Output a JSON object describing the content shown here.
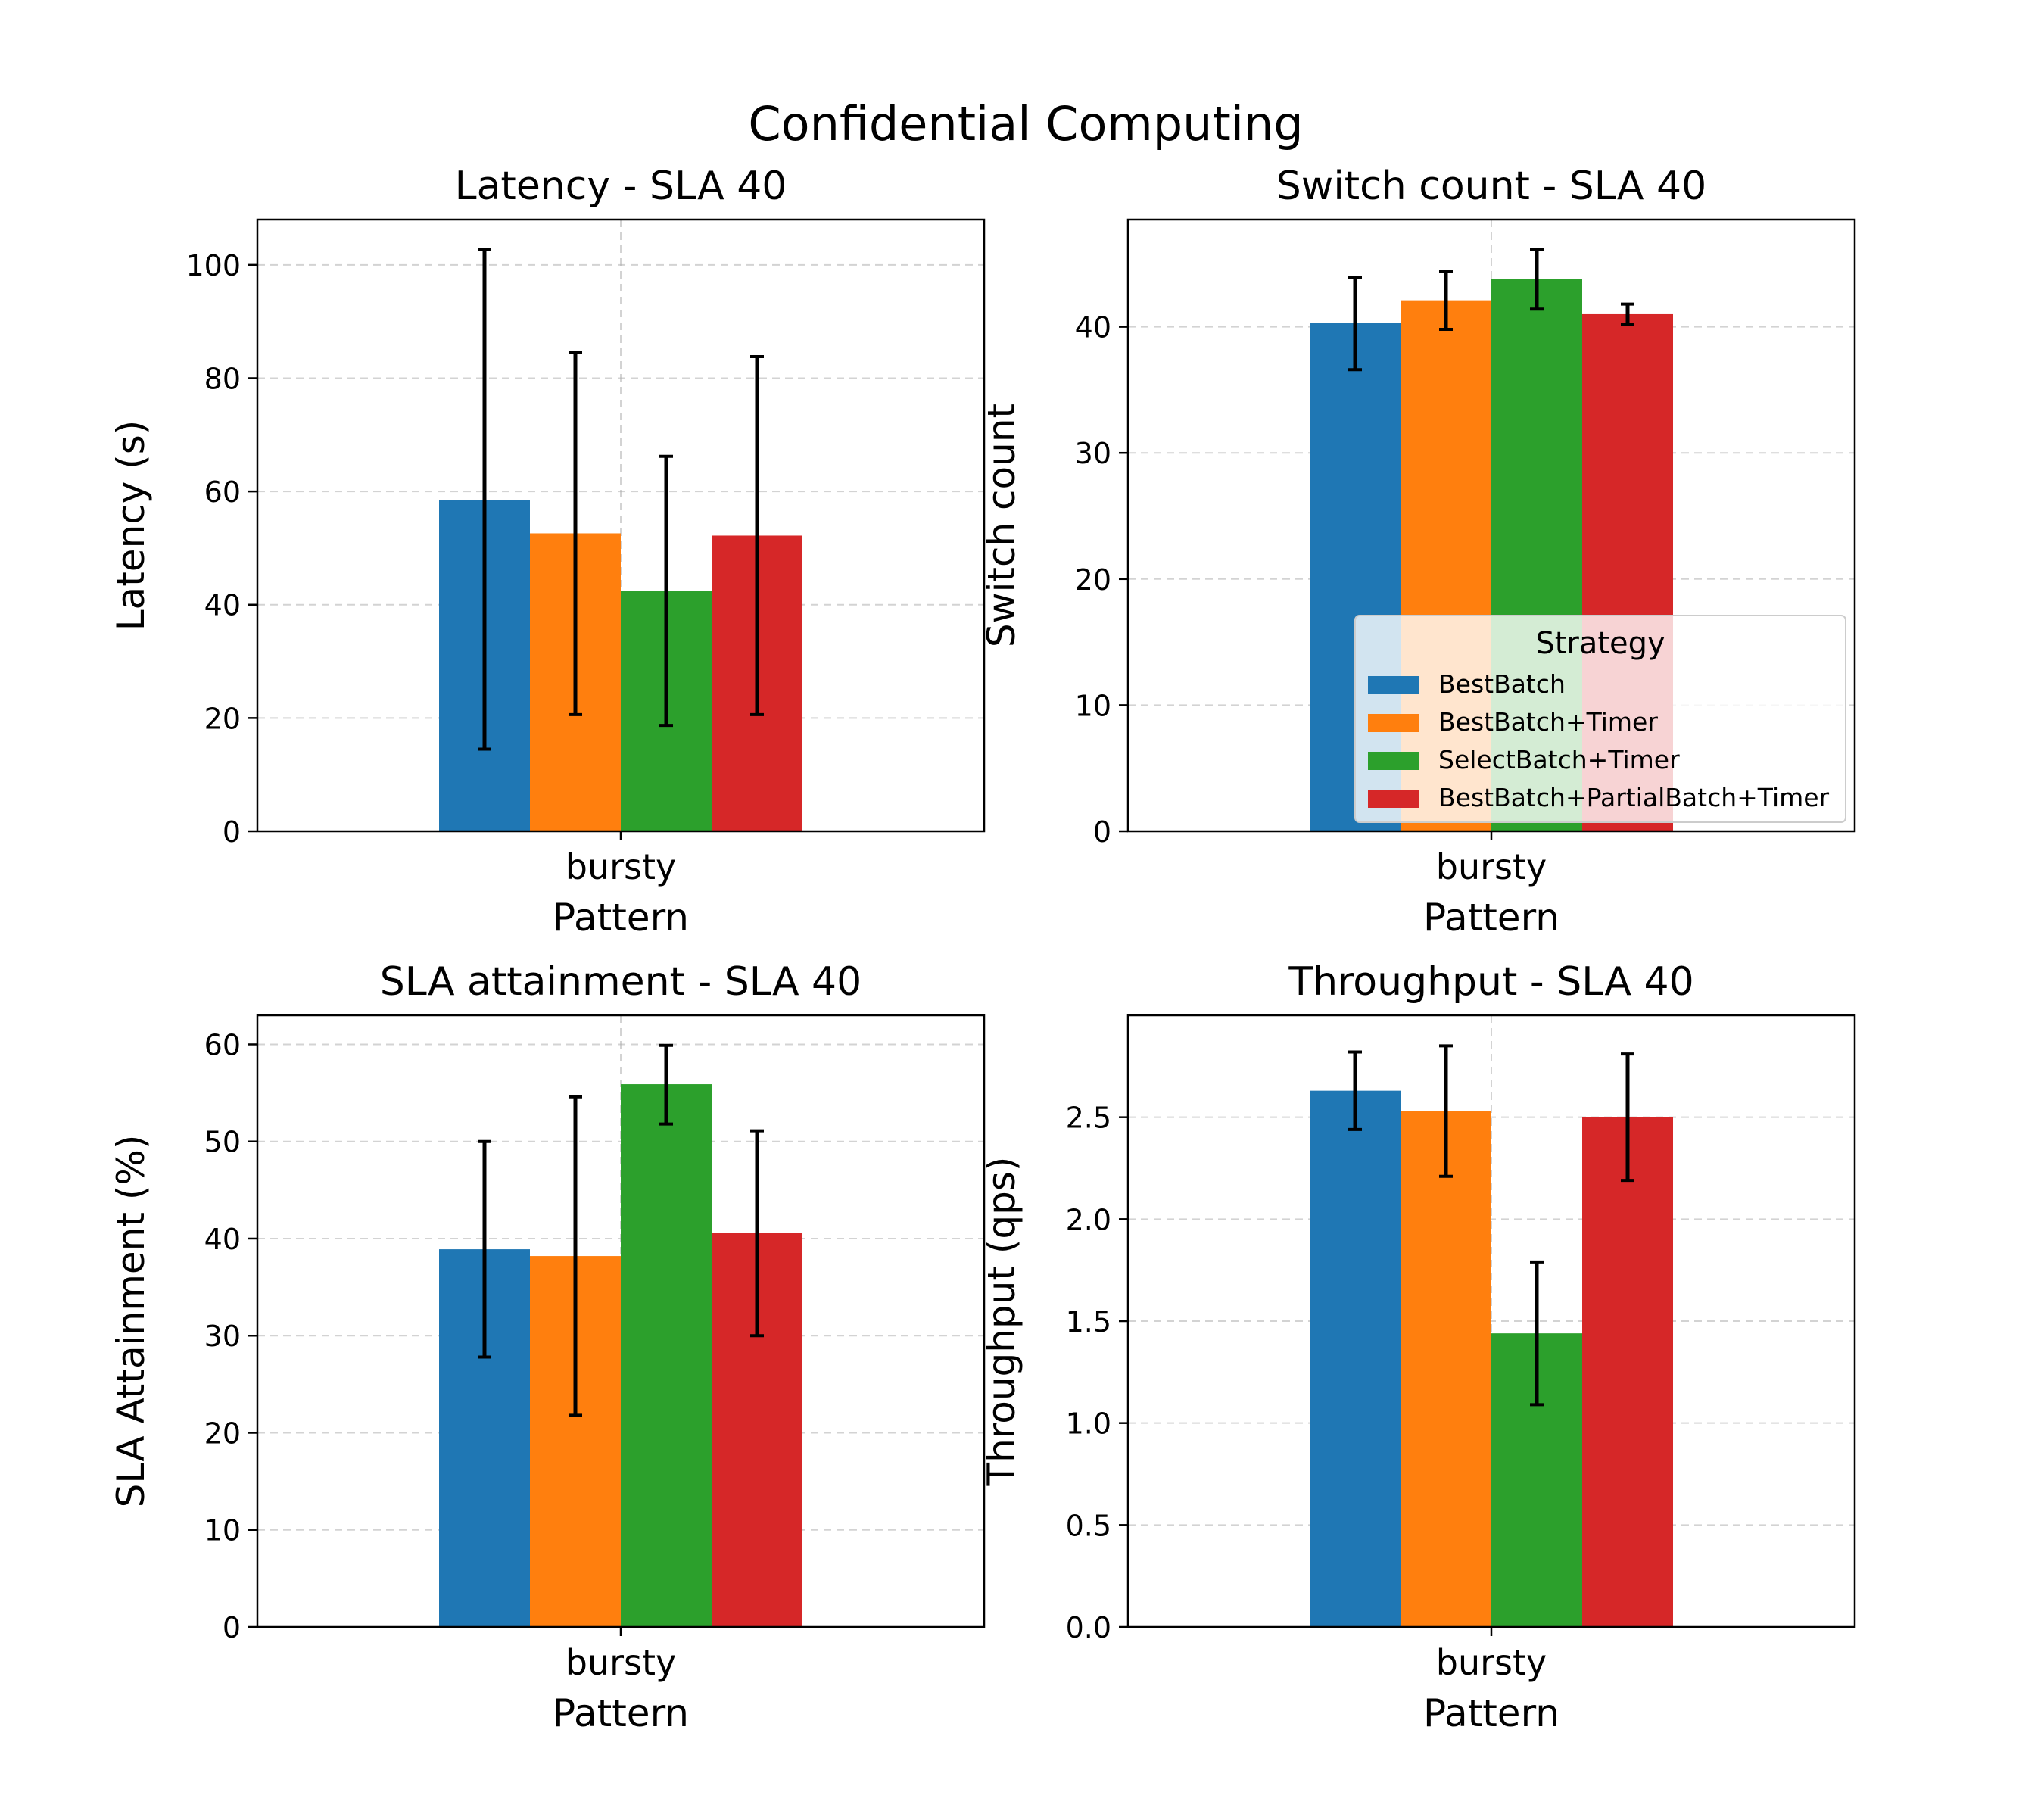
{
  "figure": {
    "title": "Confidential Computing"
  },
  "series_colors": [
    "#1f77b4",
    "#ff7f0e",
    "#2ca02c",
    "#d62728"
  ],
  "legend": {
    "title": "Strategy",
    "placement": "lower-right",
    "entries": [
      "BestBatch",
      "BestBatch+Timer",
      "SelectBatch+Timer",
      "BestBatch+PartialBatch+Timer"
    ]
  },
  "chart_data": [
    {
      "type": "bar",
      "title": "Latency - SLA 40",
      "xlabel": "Pattern",
      "ylabel": "Latency (s)",
      "categories": [
        "bursty"
      ],
      "ylim": [
        0,
        108
      ],
      "yticks": [
        0,
        20,
        40,
        60,
        80,
        100
      ],
      "grid": true,
      "series": [
        {
          "name": "BestBatch",
          "values": [
            58.5
          ],
          "err_low": [
            14.5
          ],
          "err_high": [
            102.7
          ]
        },
        {
          "name": "BestBatch+Timer",
          "values": [
            52.6
          ],
          "err_low": [
            20.6
          ],
          "err_high": [
            84.6
          ]
        },
        {
          "name": "SelectBatch+Timer",
          "values": [
            42.4
          ],
          "err_low": [
            18.7
          ],
          "err_high": [
            66.2
          ]
        },
        {
          "name": "BestBatch+PartialBatch+Timer",
          "values": [
            52.2
          ],
          "err_low": [
            20.6
          ],
          "err_high": [
            83.8
          ]
        }
      ]
    },
    {
      "type": "bar",
      "title": "Switch count - SLA 40",
      "xlabel": "Pattern",
      "ylabel": "Switch count",
      "categories": [
        "bursty"
      ],
      "ylim": [
        0,
        48.5
      ],
      "yticks": [
        0,
        10,
        20,
        30,
        40
      ],
      "grid": true,
      "legend": true,
      "series": [
        {
          "name": "BestBatch",
          "values": [
            40.3
          ],
          "err_low": [
            36.6
          ],
          "err_high": [
            43.9
          ]
        },
        {
          "name": "BestBatch+Timer",
          "values": [
            42.1
          ],
          "err_low": [
            39.8
          ],
          "err_high": [
            44.4
          ]
        },
        {
          "name": "SelectBatch+Timer",
          "values": [
            43.8
          ],
          "err_low": [
            41.4
          ],
          "err_high": [
            46.1
          ]
        },
        {
          "name": "BestBatch+PartialBatch+Timer",
          "values": [
            41.0
          ],
          "err_low": [
            40.2
          ],
          "err_high": [
            41.8
          ]
        }
      ]
    },
    {
      "type": "bar",
      "title": "SLA attainment - SLA 40",
      "xlabel": "Pattern",
      "ylabel": "SLA Attainment (%)",
      "categories": [
        "bursty"
      ],
      "ylim": [
        0,
        63
      ],
      "yticks": [
        0,
        10,
        20,
        30,
        40,
        50,
        60
      ],
      "grid": true,
      "series": [
        {
          "name": "BestBatch",
          "values": [
            38.9
          ],
          "err_low": [
            27.8
          ],
          "err_high": [
            50.0
          ]
        },
        {
          "name": "BestBatch+Timer",
          "values": [
            38.2
          ],
          "err_low": [
            21.8
          ],
          "err_high": [
            54.6
          ]
        },
        {
          "name": "SelectBatch+Timer",
          "values": [
            55.9
          ],
          "err_low": [
            51.8
          ],
          "err_high": [
            59.9
          ]
        },
        {
          "name": "BestBatch+PartialBatch+Timer",
          "values": [
            40.6
          ],
          "err_low": [
            30.0
          ],
          "err_high": [
            51.1
          ]
        }
      ]
    },
    {
      "type": "bar",
      "title": "Throughput - SLA 40",
      "xlabel": "Pattern",
      "ylabel": "Throughput (qps)",
      "categories": [
        "bursty"
      ],
      "ylim": [
        0,
        3.0
      ],
      "yticks": [
        0.0,
        0.5,
        1.0,
        1.5,
        2.0,
        2.5
      ],
      "tick_format": "1dp",
      "grid": true,
      "series": [
        {
          "name": "BestBatch",
          "values": [
            2.63
          ],
          "err_low": [
            2.44
          ],
          "err_high": [
            2.82
          ]
        },
        {
          "name": "BestBatch+Timer",
          "values": [
            2.53
          ],
          "err_low": [
            2.21
          ],
          "err_high": [
            2.85
          ]
        },
        {
          "name": "SelectBatch+Timer",
          "values": [
            1.44
          ],
          "err_low": [
            1.09
          ],
          "err_high": [
            1.79
          ]
        },
        {
          "name": "BestBatch+PartialBatch+Timer",
          "values": [
            2.5
          ],
          "err_low": [
            2.19
          ],
          "err_high": [
            2.81
          ]
        }
      ]
    }
  ]
}
